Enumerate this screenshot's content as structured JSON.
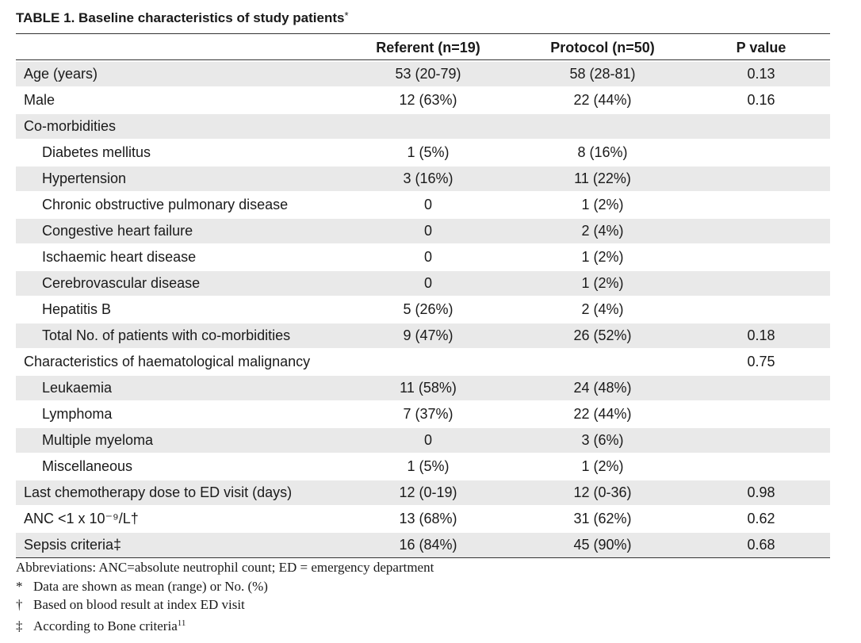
{
  "caption": {
    "label": "TABLE 1.",
    "title": "Baseline characteristics of study patients",
    "mark": "*"
  },
  "table": {
    "columns": [
      "",
      "Referent (n=19)",
      "Protocol (n=50)",
      "P value"
    ],
    "rows": [
      {
        "label": "Age (years)",
        "referent": "53 (20-79)",
        "protocol": "58 (28-81)",
        "p": "0.13",
        "indent": false
      },
      {
        "label": "Male",
        "referent": "12 (63%)",
        "protocol": "22 (44%)",
        "p": "0.16",
        "indent": false
      },
      {
        "label": "Co-morbidities",
        "referent": "",
        "protocol": "",
        "p": "",
        "indent": false
      },
      {
        "label": "Diabetes mellitus",
        "referent": "1 (5%)",
        "protocol": "8 (16%)",
        "p": "",
        "indent": true
      },
      {
        "label": "Hypertension",
        "referent": "3 (16%)",
        "protocol": "11 (22%)",
        "p": "",
        "indent": true
      },
      {
        "label": "Chronic obstructive pulmonary disease",
        "referent": "0",
        "protocol": "1 (2%)",
        "p": "",
        "indent": true
      },
      {
        "label": "Congestive heart failure",
        "referent": "0",
        "protocol": "2 (4%)",
        "p": "",
        "indent": true
      },
      {
        "label": "Ischaemic heart disease",
        "referent": "0",
        "protocol": "1 (2%)",
        "p": "",
        "indent": true
      },
      {
        "label": "Cerebrovascular disease",
        "referent": "0",
        "protocol": "1 (2%)",
        "p": "",
        "indent": true
      },
      {
        "label": "Hepatitis B",
        "referent": "5 (26%)",
        "protocol": "2 (4%)",
        "p": "",
        "indent": true
      },
      {
        "label": "Total No. of patients with co-morbidities",
        "referent": "9 (47%)",
        "protocol": "26 (52%)",
        "p": "0.18",
        "indent": true
      },
      {
        "label": "Characteristics of haematological malignancy",
        "referent": "",
        "protocol": "",
        "p": "0.75",
        "indent": false
      },
      {
        "label": "Leukaemia",
        "referent": "11 (58%)",
        "protocol": "24 (48%)",
        "p": "",
        "indent": true
      },
      {
        "label": "Lymphoma",
        "referent": "7 (37%)",
        "protocol": "22 (44%)",
        "p": "",
        "indent": true
      },
      {
        "label": "Multiple myeloma",
        "referent": "0",
        "protocol": "3 (6%)",
        "p": "",
        "indent": true
      },
      {
        "label": "Miscellaneous",
        "referent": "1 (5%)",
        "protocol": "1 (2%)",
        "p": "",
        "indent": true
      },
      {
        "label": "Last chemotherapy dose to ED visit (days)",
        "referent": "12 (0-19)",
        "protocol": "12 (0-36)",
        "p": "0.98",
        "indent": false
      },
      {
        "label": "ANC <1 x 10⁻⁹/L†",
        "referent": "13 (68%)",
        "protocol": "31 (62%)",
        "p": "0.62",
        "indent": false
      },
      {
        "label": "Sepsis criteria‡",
        "referent": "16 (84%)",
        "protocol": "45 (90%)",
        "p": "0.68",
        "indent": false
      }
    ]
  },
  "footnotes": {
    "abbreviations": "Abbreviations:  ANC=absolute neutrophil count; ED = emergency department",
    "items": [
      {
        "symbol": "*",
        "text": "Data are shown as mean (range) or No. (%)",
        "ref": ""
      },
      {
        "symbol": "†",
        "text": "Based on blood result at index ED visit",
        "ref": ""
      },
      {
        "symbol": "‡",
        "text": "According to Bone criteria",
        "ref": "11"
      }
    ]
  }
}
